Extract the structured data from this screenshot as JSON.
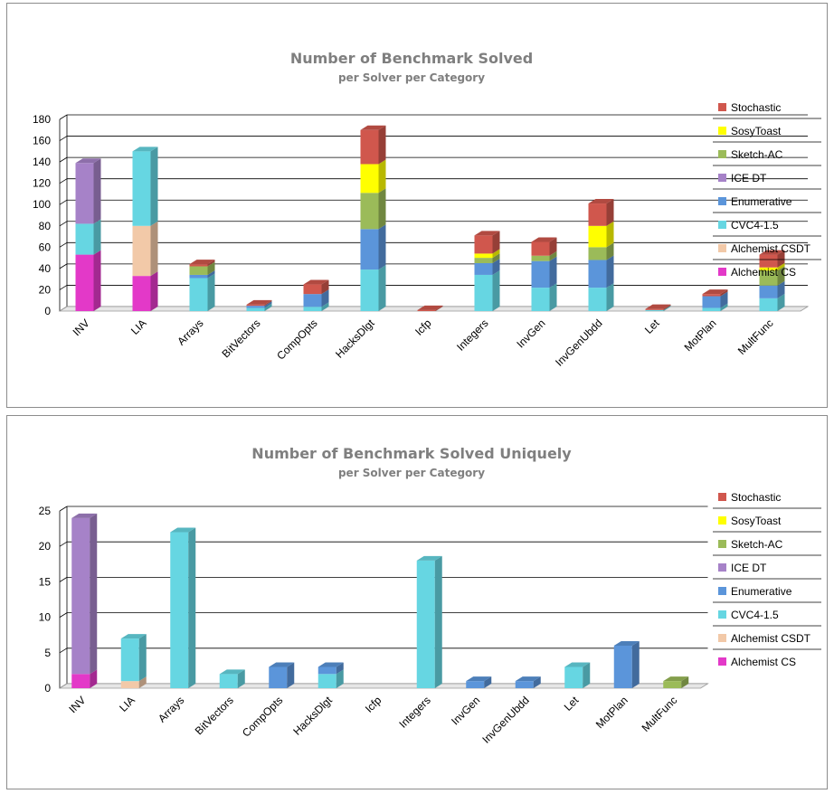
{
  "colors": {
    "Stochastic": "#d0574d",
    "SosyToast": "#ffff00",
    "Sketch-AC": "#9bbb59",
    "ICE DT": "#a682c8",
    "Enumerative": "#5b95da",
    "CVC4-1.5": "#66d6e2",
    "Alchemist CSDT": "#f2c9a8",
    "Alchemist CS": "#e339c8"
  },
  "chart_data": [
    {
      "type": "bar",
      "stacked": true,
      "title": "Number of Benchmark Solved",
      "subtitle": "per Solver per Category",
      "xlabel": "",
      "ylabel": "",
      "ylim": [
        0,
        180
      ],
      "yticks": [
        0,
        20,
        40,
        60,
        80,
        100,
        120,
        140,
        160,
        180
      ],
      "grid": true,
      "legend_position": "right",
      "legend": [
        "Stochastic",
        "SosyToast",
        "Sketch-AC",
        "ICE DT",
        "Enumerative",
        "CVC4-1.5",
        "Alchemist CSDT",
        "Alchemist CS"
      ],
      "categories": [
        "INV",
        "LIA",
        "Arrays",
        "BitVectors",
        "CompOpts",
        "HacksDlgt",
        "Icfp",
        "Integers",
        "InvGen",
        "InvGenUbdd",
        "Let",
        "MotPlan",
        "MultFunc"
      ],
      "series": [
        {
          "name": "Alchemist CS",
          "values": [
            53,
            33,
            0,
            0,
            0,
            0,
            0,
            0,
            0,
            0,
            0,
            0,
            0
          ]
        },
        {
          "name": "Alchemist CSDT",
          "values": [
            0,
            47,
            0,
            0,
            0,
            0,
            0,
            0,
            0,
            0,
            0,
            0,
            0
          ]
        },
        {
          "name": "CVC4-1.5",
          "values": [
            29,
            70,
            31,
            3,
            4,
            39,
            0,
            34,
            22,
            22,
            1,
            3,
            12
          ]
        },
        {
          "name": "Enumerative",
          "values": [
            0,
            0,
            3,
            2,
            12,
            38,
            0,
            11,
            25,
            26,
            0,
            11,
            12
          ]
        },
        {
          "name": "ICE DT",
          "values": [
            57,
            0,
            0,
            0,
            0,
            0,
            0,
            0,
            0,
            0,
            0,
            0,
            0
          ]
        },
        {
          "name": "Sketch-AC",
          "values": [
            0,
            0,
            8,
            0,
            0,
            34,
            0,
            5,
            5,
            12,
            0,
            0,
            14
          ]
        },
        {
          "name": "SosyToast",
          "values": [
            0,
            0,
            0,
            0,
            0,
            27,
            0,
            4,
            0,
            20,
            0,
            0,
            3
          ]
        },
        {
          "name": "Stochastic",
          "values": [
            0,
            0,
            2,
            1,
            9,
            32,
            1,
            17,
            13,
            21,
            1,
            2,
            12
          ]
        }
      ]
    },
    {
      "type": "bar",
      "stacked": true,
      "title": "Number of Benchmark Solved Uniquely",
      "subtitle": "per Solver per Category",
      "xlabel": "",
      "ylabel": "",
      "ylim": [
        0,
        25
      ],
      "yticks": [
        0,
        5,
        10,
        15,
        20,
        25
      ],
      "grid": true,
      "legend_position": "right",
      "legend": [
        "Stochastic",
        "SosyToast",
        "Sketch-AC",
        "ICE DT",
        "Enumerative",
        "CVC4-1.5",
        "Alchemist CSDT",
        "Alchemist CS"
      ],
      "categories": [
        "INV",
        "LIA",
        "Arrays",
        "BitVectors",
        "CompOpts",
        "HacksDlgt",
        "Icfp",
        "Integers",
        "InvGen",
        "InvGenUbdd",
        "Let",
        "MotPlan",
        "MultFunc"
      ],
      "series": [
        {
          "name": "Alchemist CS",
          "values": [
            2,
            0,
            0,
            0,
            0,
            0,
            0,
            0,
            0,
            0,
            0,
            0,
            0
          ]
        },
        {
          "name": "Alchemist CSDT",
          "values": [
            0,
            1,
            0,
            0,
            0,
            0,
            0,
            0,
            0,
            0,
            0,
            0,
            0
          ]
        },
        {
          "name": "CVC4-1.5",
          "values": [
            0,
            6,
            22,
            2,
            0,
            2,
            0,
            18,
            0,
            0,
            3,
            0,
            0
          ]
        },
        {
          "name": "Enumerative",
          "values": [
            0,
            0,
            0,
            0,
            3,
            1,
            0,
            0,
            1,
            1,
            0,
            6,
            0
          ]
        },
        {
          "name": "ICE DT",
          "values": [
            22,
            0,
            0,
            0,
            0,
            0,
            0,
            0,
            0,
            0,
            0,
            0,
            0
          ]
        },
        {
          "name": "Sketch-AC",
          "values": [
            0,
            0,
            0,
            0,
            0,
            0,
            0,
            0,
            0,
            0,
            0,
            0,
            1
          ]
        },
        {
          "name": "SosyToast",
          "values": [
            0,
            0,
            0,
            0,
            0,
            0,
            0,
            0,
            0,
            0,
            0,
            0,
            0
          ]
        },
        {
          "name": "Stochastic",
          "values": [
            0,
            0,
            0,
            0,
            0,
            0,
            0,
            0,
            0,
            0,
            0,
            0,
            0
          ]
        }
      ]
    }
  ]
}
